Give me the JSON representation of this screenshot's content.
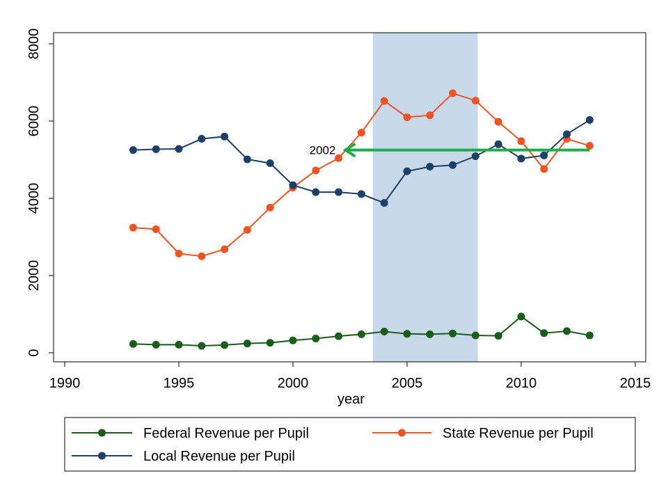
{
  "chart_data": {
    "type": "line",
    "xlabel": "year",
    "ylabel": "",
    "xlim": [
      1990,
      2015
    ],
    "ylim": [
      0,
      8000
    ],
    "xticks": [
      1990,
      1995,
      2000,
      2005,
      2010,
      2015
    ],
    "yticks": [
      0,
      2000,
      4000,
      6000,
      8000
    ],
    "grid": false,
    "legend_position": "bottom",
    "shaded_region": {
      "x_start": 2003.5,
      "x_end": 2008.1,
      "color": "#c9d9ec"
    },
    "annotation": {
      "text": "2002",
      "arrow_from": [
        2013,
        5250
      ],
      "arrow_to": [
        2002.3,
        5250
      ],
      "color": "#1faa4b"
    },
    "x": [
      1993,
      1994,
      1995,
      1996,
      1997,
      1998,
      1999,
      2000,
      2001,
      2002,
      2003,
      2004,
      2005,
      2006,
      2007,
      2008,
      2009,
      2010,
      2011,
      2012,
      2013
    ],
    "series": [
      {
        "name": "Federal Revenue per Pupil",
        "color": "#1a5c1a",
        "values": [
          230,
          210,
          210,
          180,
          200,
          240,
          260,
          320,
          370,
          430,
          480,
          550,
          490,
          480,
          500,
          450,
          440,
          940,
          510,
          560,
          450
        ]
      },
      {
        "name": "State Revenue per Pupil",
        "color": "#ee5522",
        "values": [
          3240,
          3200,
          2570,
          2500,
          2680,
          3180,
          3760,
          4280,
          4720,
          5040,
          5700,
          6520,
          6100,
          6150,
          6720,
          6530,
          5980,
          5480,
          4760,
          5540,
          5360
        ]
      },
      {
        "name": "Local Revenue per Pupil",
        "color": "#1c4068",
        "values": [
          5250,
          5270,
          5280,
          5540,
          5600,
          5010,
          4910,
          4340,
          4160,
          4160,
          4110,
          3880,
          4700,
          4820,
          4860,
          5090,
          5400,
          5030,
          5110,
          5660,
          6030
        ]
      }
    ]
  }
}
